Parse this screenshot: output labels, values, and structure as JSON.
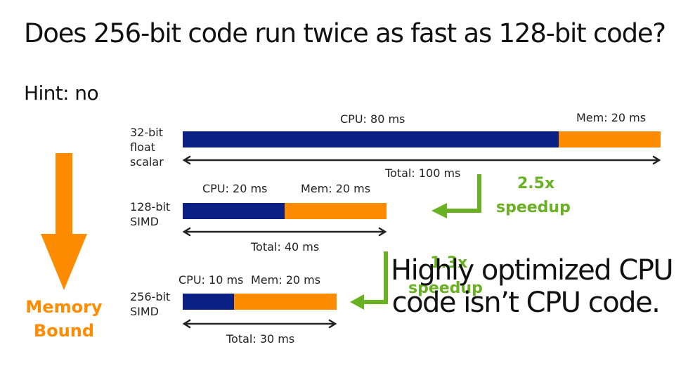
{
  "title": "Does 256-bit code run twice as fast as 128-bit code?",
  "hint": "Hint: no",
  "rows": [
    {
      "label": "32-bit\nfloat\nscalar",
      "cpu_label": "CPU: 80 ms",
      "mem_label": "Mem: 20 ms",
      "total_label": "Total: 100 ms",
      "cpu_ms": 80,
      "mem_ms": 20
    },
    {
      "label": "128-bit\nSIMD",
      "cpu_label": "CPU: 20 ms",
      "mem_label": "Mem: 20 ms",
      "total_label": "Total: 40 ms",
      "cpu_ms": 20,
      "mem_ms": 20
    },
    {
      "label": "256-bit\nSIMD",
      "cpu_label": "CPU: 10 ms",
      "mem_label": "Mem: 20 ms",
      "total_label": "Total: 30 ms",
      "cpu_ms": 10,
      "mem_ms": 20
    }
  ],
  "speedups": [
    {
      "line1": "2.5x",
      "line2": "speedup"
    },
    {
      "line1": "1.3x",
      "line2": "speedup"
    }
  ],
  "memory_bound": "Memory\nBound",
  "callout": "Highly optimized CPU\ncode isn’t CPU code.",
  "colors": {
    "cpu": "#0a2084",
    "mem": "#ff8c00",
    "speedup": "#6ab023"
  }
}
